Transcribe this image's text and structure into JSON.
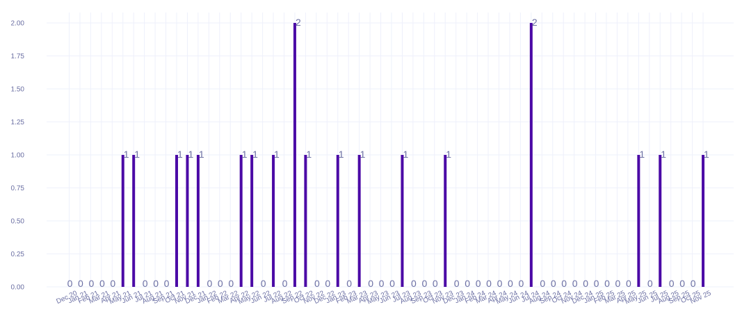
{
  "colors": {
    "bar": "#4b0aa6",
    "text": "#6b6fa3",
    "grid": "#eef0fb"
  },
  "chart_data": {
    "type": "bar",
    "title": "",
    "xlabel": "",
    "ylabel": "",
    "ylim": [
      0,
      2.1
    ],
    "yticks": [
      "0.00",
      "0.25",
      "0.50",
      "0.75",
      "1.00",
      "1.25",
      "1.50",
      "1.75",
      "2.00"
    ],
    "ytick_values": [
      0,
      0.25,
      0.5,
      0.75,
      1.0,
      1.25,
      1.5,
      1.75,
      2.0
    ],
    "grid": true,
    "legend": "none",
    "categories": [
      "Dec 20",
      "Jan 21",
      "Feb 21",
      "Mar 21",
      "Apr 21",
      "May 21",
      "Jun 21",
      "Jul 21",
      "Aug 21",
      "Sep 21",
      "Oct 21",
      "Nov 21",
      "Dec 21",
      "Jan 22",
      "Feb 22",
      "Mar 22",
      "Apr 22",
      "May 22",
      "Jun 22",
      "Jul 22",
      "Aug 22",
      "Sep 22",
      "Oct 22",
      "Nov 22",
      "Dec 22",
      "Jan 23",
      "Feb 23",
      "Mar 23",
      "Apr 23",
      "May 23",
      "Jun 23",
      "Jul 23",
      "Aug 23",
      "Sep 23",
      "Oct 23",
      "Nov 23",
      "Dec 23",
      "Jan 24",
      "Feb 24",
      "Mar 24",
      "Apr 24",
      "May 24",
      "Jun 24",
      "Jul 24",
      "Aug 24",
      "Sep 24",
      "Oct 24",
      "Nov 24",
      "Dec 24",
      "Jan 25",
      "Feb 25",
      "Mar 25",
      "Apr 25",
      "May 25",
      "Jun 25",
      "Jul 25",
      "Aug 25",
      "Sep 25",
      "Oct 25",
      "Nov 25"
    ],
    "values": [
      0,
      0,
      0,
      0,
      0,
      1,
      1,
      0,
      0,
      0,
      1,
      1,
      1,
      0,
      0,
      0,
      1,
      1,
      0,
      1,
      0,
      2,
      1,
      0,
      0,
      1,
      0,
      1,
      0,
      0,
      0,
      1,
      0,
      0,
      0,
      1,
      0,
      0,
      0,
      0,
      0,
      0,
      0,
      2,
      0,
      0,
      0,
      0,
      0,
      0,
      0,
      0,
      0,
      1,
      0,
      1,
      0,
      0,
      0,
      1
    ]
  }
}
